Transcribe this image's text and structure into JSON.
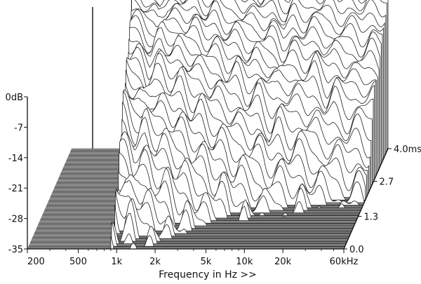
{
  "chart_data": {
    "type": "waterfall-3d",
    "xlabel": "Frequency in Hz >>",
    "ylabel": "",
    "zlabel": "",
    "x_ticks": [
      "200",
      "500",
      "1k",
      "2k",
      "5k",
      "10k",
      "20k",
      "60kHz"
    ],
    "x_tick_values": [
      200,
      500,
      1000,
      2000,
      5000,
      10000,
      20000,
      60000
    ],
    "x_scale": "log",
    "xlim": [
      200,
      60000
    ],
    "y_ticks": [
      "0dB",
      "-7",
      "-14",
      "-21",
      "-28",
      "-35"
    ],
    "y_tick_values": [
      0,
      -7,
      -14,
      -21,
      -28,
      -35
    ],
    "ylim": [
      -35,
      0
    ],
    "z_ticks": [
      "0.0",
      "1.3",
      "2.7",
      "4.0msec"
    ],
    "z_tick_values": [
      0.0,
      1.3,
      2.7,
      4.0
    ],
    "zlim": [
      0,
      4.0
    ],
    "slices": 40,
    "first_slice_profile": {
      "frequency_hz": [
        200,
        400,
        600,
        800,
        1000,
        1200,
        1500,
        2000,
        2500,
        3000,
        4000,
        5000,
        6000,
        8000,
        10000,
        12000,
        15000,
        20000,
        25000,
        30000,
        40000,
        50000,
        60000
      ],
      "level_db": [
        1,
        0,
        2,
        1,
        -2,
        3,
        2,
        4,
        2,
        3,
        1,
        2,
        0,
        2,
        -1,
        2,
        1,
        3,
        0,
        2,
        0,
        2,
        1
      ]
    },
    "colors": {
      "line": "#222222",
      "fill": "#ffffff",
      "floor": "#7d7d7d"
    }
  }
}
